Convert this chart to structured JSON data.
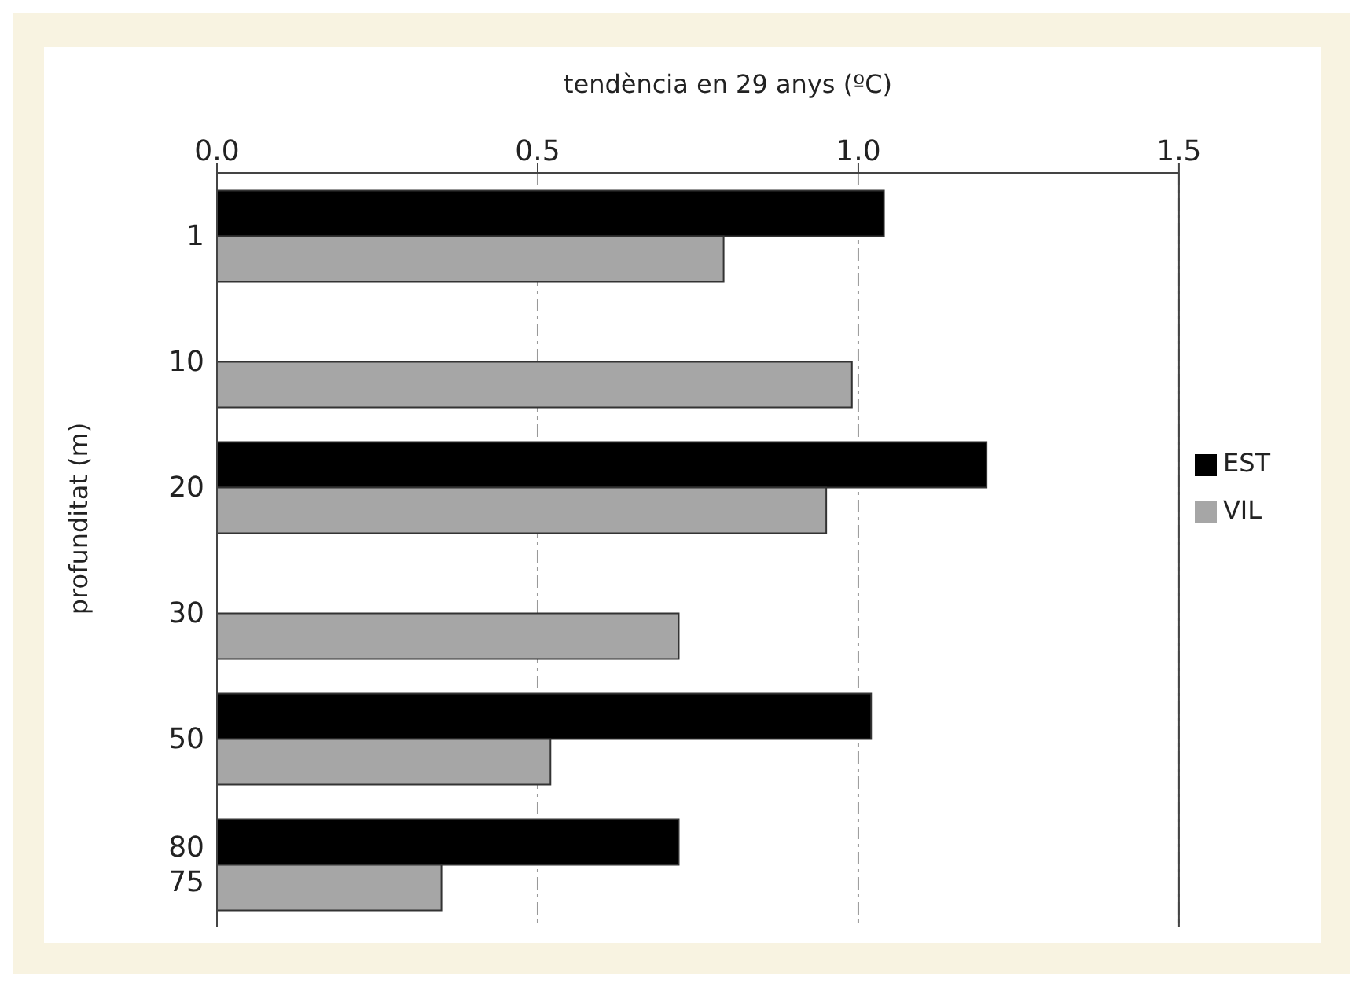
{
  "chart_data": {
    "type": "bar",
    "orientation": "horizontal",
    "xlabel": "tendència en 29 anys (ºC)",
    "ylabel": "profunditat (m)",
    "categories": [
      "1",
      "10",
      "20",
      "30",
      "50",
      "80\n75"
    ],
    "series": [
      {
        "name": "EST",
        "color": "#000000",
        "values": [
          1.04,
          null,
          1.2,
          null,
          1.02,
          0.72
        ]
      },
      {
        "name": "VIL",
        "color": "#a6a6a6",
        "values": [
          0.79,
          0.99,
          0.95,
          0.72,
          0.52,
          0.35
        ]
      }
    ],
    "xlim": [
      0,
      1.5
    ],
    "xticks": [
      {
        "value": 0,
        "label": "0.0"
      },
      {
        "value": 0.5,
        "label": "0.5"
      },
      {
        "value": 1,
        "label": "1.0"
      },
      {
        "value": 1.5,
        "label": "1.5"
      }
    ],
    "grid": "x",
    "legend": "right"
  }
}
